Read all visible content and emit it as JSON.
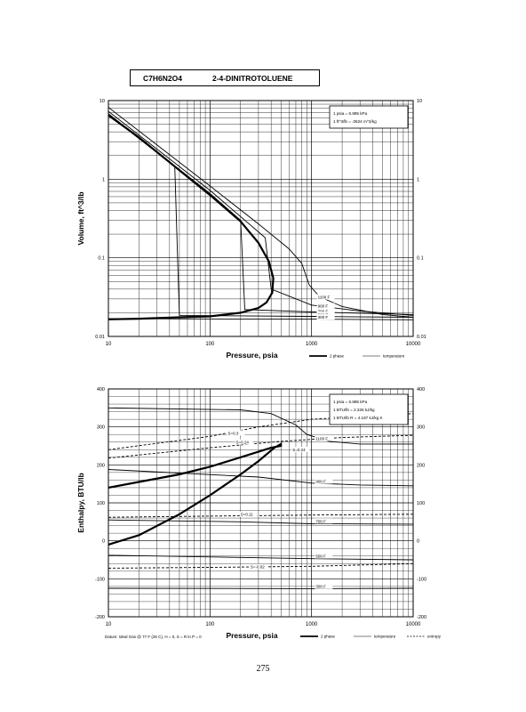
{
  "header": {
    "formula": "C7H6N2O4",
    "name": "2-4-DINITROTOLUENE"
  },
  "page_number": "275",
  "chart_data": [
    {
      "type": "line",
      "xscale": "log",
      "yscale": "log",
      "xlabel": "Pressure,  psia",
      "ylabel": "Volume, ft^3/lb",
      "xlim": [
        10,
        10000
      ],
      "ylim": [
        0.01,
        10
      ],
      "x_ticks": [
        "10",
        "100",
        "1000",
        "10000"
      ],
      "y_ticks": [
        "0.01",
        "0.1",
        "1",
        "10"
      ],
      "y_ticks_right": [
        "0.01",
        "0.1",
        "1",
        "10"
      ],
      "grid": true,
      "info_box": [
        "1 psia  =  6.895 kPa",
        "1 ft^3/lb  =  .0624 m^3/kg"
      ],
      "legend": [
        "2 phase",
        "temperature"
      ],
      "legend_position": "bottom-right, below plot",
      "isotherm_labels": [
        "1100 F",
        "900 F",
        "700 F",
        "500 F",
        "300 F"
      ],
      "series": [
        {
          "name": "2 phase",
          "style": "heavy",
          "points": [
            [
              10,
              6.5
            ],
            [
              20,
              3.4
            ],
            [
              50,
              1.3
            ],
            [
              100,
              0.63
            ],
            [
              200,
              0.29
            ],
            [
              300,
              0.155
            ],
            [
              380,
              0.09
            ],
            [
              420,
              0.055
            ],
            [
              410,
              0.036
            ],
            [
              360,
              0.027
            ],
            [
              300,
              0.023
            ],
            [
              200,
              0.02
            ],
            [
              100,
              0.018
            ],
            [
              50,
              0.0175
            ],
            [
              20,
              0.0168
            ],
            [
              10,
              0.0165
            ]
          ]
        },
        {
          "name": "1100 F",
          "style": "thin",
          "points": [
            [
              10,
              8.2
            ],
            [
              100,
              0.82
            ],
            [
              300,
              0.27
            ],
            [
              600,
              0.13
            ],
            [
              800,
              0.085
            ],
            [
              950,
              0.045
            ],
            [
              1200,
              0.032
            ],
            [
              2000,
              0.024
            ],
            [
              5000,
              0.019
            ],
            [
              10000,
              0.0175
            ]
          ]
        },
        {
          "name": "900 F",
          "style": "thin",
          "points": [
            [
              10,
              7.3
            ],
            [
              100,
              0.72
            ],
            [
              350,
              0.18
            ],
            [
              400,
              0.04
            ],
            [
              1000,
              0.025
            ],
            [
              3000,
              0.021
            ],
            [
              10000,
              0.0185
            ]
          ]
        },
        {
          "name": "700 F",
          "style": "thin",
          "points": [
            [
              10,
              6.8
            ],
            [
              100,
              0.66
            ],
            [
              200,
              0.3
            ],
            [
              220,
              0.022
            ],
            [
              1000,
              0.0205
            ],
            [
              10000,
              0.019
            ]
          ]
        },
        {
          "name": "500 F",
          "style": "thin",
          "points": [
            [
              10,
              6.6
            ],
            [
              45,
              1.45
            ],
            [
              50,
              0.0185
            ],
            [
              1000,
              0.018
            ],
            [
              10000,
              0.0175
            ]
          ]
        },
        {
          "name": "300 F",
          "style": "thin",
          "points": [
            [
              10,
              0.0168
            ],
            [
              1000,
              0.0166
            ],
            [
              10000,
              0.0163
            ]
          ]
        }
      ]
    },
    {
      "type": "line",
      "xscale": "log",
      "yscale": "linear",
      "xlabel": "Pressure,  psia",
      "ylabel": "Enthalpy, BTU/lb",
      "xlim": [
        10,
        10000
      ],
      "ylim": [
        -200,
        400
      ],
      "x_ticks": [
        "10",
        "100",
        "1000",
        "10000"
      ],
      "y_ticks": [
        "-200",
        "-100",
        "0",
        "100",
        "200",
        "300",
        "400"
      ],
      "y_ticks_right": [
        "-200",
        "-100",
        "0",
        "100",
        "200",
        "300",
        "400"
      ],
      "grid": true,
      "info_box": [
        "1 psia  =  6.895 kPa",
        "1 BTU/lb  =  2.326 kJ/kg",
        "1 BTU/lb R  =  4.187 kJ/kg K"
      ],
      "legend": [
        "2 phase",
        "temperature",
        "entropy"
      ],
      "legend_position": "bottom-right, below plot",
      "footnote": "Datum: Ideal Gas @ 77 F (25 C),  H = 0,  S = R ln P = 0",
      "isotherm_labels": [
        "1100 F",
        "900 F",
        "700 F",
        "500 F",
        "300 F"
      ],
      "entropy_labels": [
        "S=0.3",
        "S=0.24",
        "S=0.24",
        "S=0.11",
        "S=-0.02"
      ],
      "series": [
        {
          "name": "2 phase",
          "style": "heavy",
          "points": [
            [
              10,
              -10
            ],
            [
              20,
              15
            ],
            [
              50,
              70
            ],
            [
              100,
              120
            ],
            [
              200,
              175
            ],
            [
              300,
              210
            ],
            [
              430,
              245
            ],
            [
              500,
              255
            ],
            [
              500,
              250
            ],
            [
              400,
              245
            ],
            [
              200,
              220
            ],
            [
              100,
              195
            ],
            [
              50,
              175
            ],
            [
              20,
              155
            ],
            [
              10,
              140
            ]
          ]
        },
        {
          "name": "1100 F",
          "style": "thin",
          "points": [
            [
              10,
              350
            ],
            [
              200,
              345
            ],
            [
              400,
              335
            ],
            [
              700,
              305
            ],
            [
              900,
              280
            ],
            [
              1500,
              262
            ],
            [
              3000,
              255
            ],
            [
              10000,
              255
            ]
          ]
        },
        {
          "name": "900 F",
          "style": "thin",
          "points": [
            [
              10,
              188
            ],
            [
              300,
              168
            ],
            [
              1000,
              152
            ],
            [
              3000,
              147
            ],
            [
              10000,
              145
            ]
          ]
        },
        {
          "name": "700 F",
          "style": "thin",
          "points": [
            [
              10,
              55
            ],
            [
              200,
              50
            ],
            [
              1000,
              45
            ],
            [
              10000,
              44
            ]
          ]
        },
        {
          "name": "500 F",
          "style": "thin",
          "points": [
            [
              10,
              -38
            ],
            [
              1000,
              -47
            ],
            [
              10000,
              -50
            ]
          ]
        },
        {
          "name": "300 F",
          "style": "thin",
          "points": [
            [
              10,
              -125
            ],
            [
              1000,
              -126
            ],
            [
              10000,
              -125
            ]
          ]
        },
        {
          "name": "S=0.3",
          "style": "dashed",
          "points": [
            [
              10,
              240
            ],
            [
              100,
              275
            ],
            [
              300,
              300
            ],
            [
              1000,
              320
            ],
            [
              10000,
              335
            ]
          ]
        },
        {
          "name": "S=0.24",
          "style": "dashed",
          "points": [
            [
              10,
              218
            ],
            [
              100,
              245
            ],
            [
              500,
              262
            ],
            [
              2000,
              272
            ],
            [
              10000,
              278
            ]
          ]
        },
        {
          "name": "S=0.11",
          "style": "dashed",
          "points": [
            [
              10,
              62
            ],
            [
              100,
              65
            ],
            [
              1000,
              68
            ],
            [
              10000,
              70
            ]
          ]
        },
        {
          "name": "S=-0.02",
          "style": "dashed",
          "points": [
            [
              10,
              -72
            ],
            [
              100,
              -70
            ],
            [
              1000,
              -67
            ],
            [
              10000,
              -60
            ]
          ]
        }
      ]
    }
  ]
}
